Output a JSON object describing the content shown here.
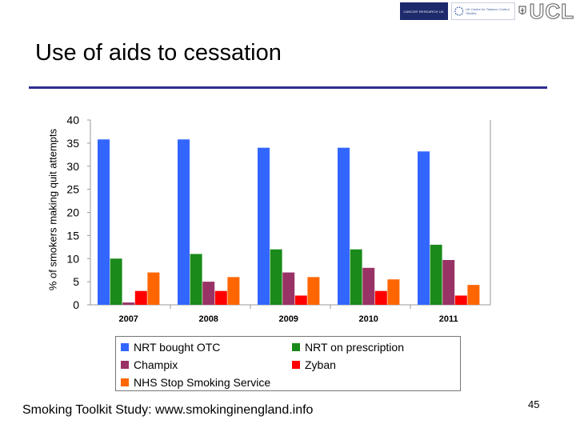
{
  "logos": {
    "cancer_research_uk": "CANCER RESEARCH UK",
    "tobacco_centre": "UK Centre for Tobacco Control Studies",
    "ucl": "UCL"
  },
  "slide": {
    "title": "Use of aids to cessation",
    "footer": "Smoking Toolkit Study: www.smokinginengland.info",
    "page_number": "45"
  },
  "colors": {
    "title_rule": "#2d2d8c",
    "nrt_otc": "#3366ff",
    "nrt_rx": "#1a8a1a",
    "champix": "#993366",
    "zyban": "#ff0000",
    "nhs_sss": "#ff6600"
  },
  "chart_data": {
    "type": "bar",
    "title": "",
    "xlabel": "",
    "ylabel": "% of smokers making quit attempts",
    "ylim": [
      0,
      40
    ],
    "yticks": [
      0,
      5,
      10,
      15,
      20,
      25,
      30,
      35,
      40
    ],
    "grid": false,
    "legend_position": "bottom",
    "categories": [
      "2007",
      "2008",
      "2009",
      "2010",
      "2011"
    ],
    "series": [
      {
        "name": "NRT bought OTC",
        "color": "#3366ff",
        "values": [
          35.8,
          35.8,
          34,
          34,
          33.2
        ]
      },
      {
        "name": "NRT on prescription",
        "color": "#1a8a1a",
        "values": [
          10,
          11,
          12,
          12,
          13
        ]
      },
      {
        "name": "Champix",
        "color": "#993366",
        "values": [
          0.5,
          5,
          7,
          8,
          9.7
        ]
      },
      {
        "name": "Zyban",
        "color": "#ff0000",
        "values": [
          3,
          3,
          2,
          3,
          2
        ]
      },
      {
        "name": "NHS Stop Smoking Service",
        "color": "#ff6600",
        "values": [
          7,
          6,
          6,
          5.5,
          4.3
        ]
      }
    ]
  }
}
